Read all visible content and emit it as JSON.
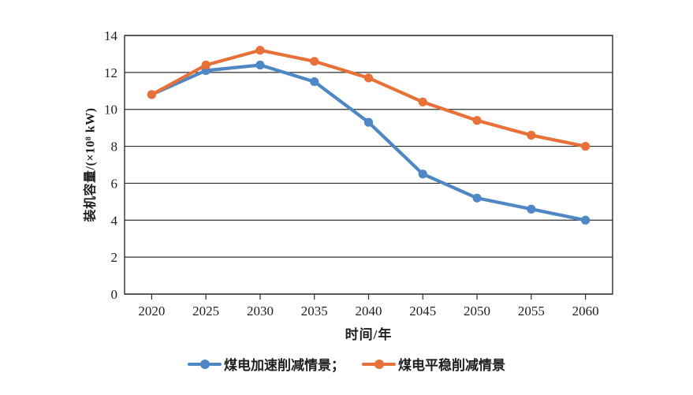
{
  "chart_data": {
    "type": "line",
    "title": "",
    "categories": [
      "2020",
      "2025",
      "2030",
      "2035",
      "2040",
      "2045",
      "2050",
      "2055",
      "2060"
    ],
    "series": [
      {
        "name": "煤电加速削减情景",
        "color": "#4E87C4",
        "marker": "circle",
        "values": [
          10.8,
          12.1,
          12.4,
          11.5,
          9.3,
          6.5,
          5.2,
          4.6,
          4.0
        ]
      },
      {
        "name": "煤电平稳削减情景",
        "color": "#E8713A",
        "marker": "circle",
        "values": [
          10.8,
          12.4,
          13.2,
          12.6,
          11.7,
          10.4,
          9.4,
          8.6,
          8.0
        ]
      }
    ],
    "xlabel": "时间/年",
    "ylabel": "装机容量/(×10⁸ kW)",
    "ylim": [
      0,
      14
    ],
    "y_ticks": [
      0,
      2,
      4,
      6,
      8,
      10,
      12,
      14
    ],
    "grid": "horizontal",
    "plot_border": true,
    "legend_position": "bottom"
  },
  "legend": {
    "items": [
      {
        "label": "煤电加速削减情景；"
      },
      {
        "label": "煤电平稳削减情景"
      }
    ]
  },
  "colors": {
    "axis": "#2e2e2e",
    "tick_text": "#1f1f1f",
    "background": "#ffffff"
  }
}
